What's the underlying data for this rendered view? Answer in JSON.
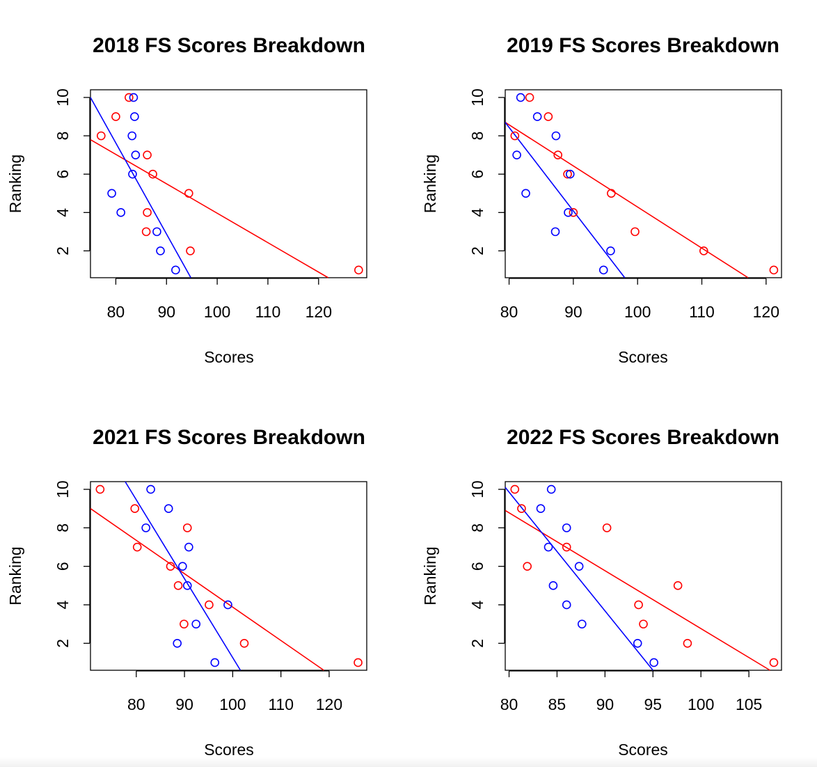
{
  "chart_data": [
    {
      "type": "scatter",
      "title": "2018 FS Scores Breakdown",
      "xlabel": "Scores",
      "ylabel": "Ranking",
      "xlim": [
        75.0,
        129.5
      ],
      "ylim": [
        0.6,
        10.4
      ],
      "xticks": [
        80,
        90,
        100,
        110,
        120
      ],
      "yticks": [
        2,
        4,
        6,
        8,
        10
      ],
      "series": [
        {
          "color": "#ff0000",
          "x": [
            127.9,
            94.7,
            86.0,
            86.2,
            94.4,
            87.3,
            86.2,
            77.1,
            80.0,
            82.6
          ],
          "y": [
            1,
            2,
            3,
            4,
            5,
            6,
            7,
            8,
            9,
            10
          ]
        },
        {
          "color": "#0000ff",
          "x": [
            91.8,
            88.8,
            88.1,
            81.0,
            79.2,
            83.3,
            83.9,
            83.2,
            83.7,
            83.5
          ],
          "y": [
            1,
            2,
            3,
            4,
            5,
            6,
            7,
            8,
            9,
            10
          ]
        }
      ],
      "fit_lines": [
        {
          "color": "#ff0000",
          "x": [
            75.0,
            121.9
          ],
          "y": [
            7.8,
            0.6
          ]
        },
        {
          "color": "#0000ff",
          "x": [
            75.0,
            94.8
          ],
          "y": [
            10.0,
            0.6
          ]
        }
      ]
    },
    {
      "type": "scatter",
      "title": "2019 FS Scores Breakdown",
      "xlabel": "Scores",
      "ylabel": "Ranking",
      "xlim": [
        79.4,
        122.4
      ],
      "ylim": [
        0.6,
        10.4
      ],
      "xticks": [
        80,
        90,
        100,
        110,
        120
      ],
      "yticks": [
        2,
        4,
        6,
        8,
        10
      ],
      "series": [
        {
          "color": "#ff0000",
          "x": [
            121.2,
            110.3,
            99.6,
            90.0,
            95.9,
            89.1,
            87.6,
            80.9,
            86.1,
            83.2
          ],
          "y": [
            1,
            2,
            3,
            4,
            5,
            6,
            7,
            8,
            9,
            10
          ]
        },
        {
          "color": "#0000ff",
          "x": [
            94.7,
            95.8,
            87.2,
            89.2,
            82.6,
            89.5,
            81.2,
            87.3,
            84.4,
            81.8
          ],
          "y": [
            1,
            2,
            3,
            4,
            5,
            6,
            7,
            8,
            9,
            10
          ]
        }
      ],
      "fit_lines": [
        {
          "color": "#ff0000",
          "x": [
            79.4,
            117.2
          ],
          "y": [
            8.7,
            0.6
          ]
        },
        {
          "color": "#0000ff",
          "x": [
            79.4,
            98.0
          ],
          "y": [
            8.7,
            0.6
          ]
        }
      ]
    },
    {
      "type": "scatter",
      "title": "2021 FS Scores Breakdown",
      "xlabel": "Scores",
      "ylabel": "Ranking",
      "xlim": [
        70.5,
        127.8
      ],
      "ylim": [
        0.6,
        10.4
      ],
      "xticks": [
        80,
        90,
        100,
        110,
        120
      ],
      "yticks": [
        2,
        4,
        6,
        8,
        10
      ],
      "series": [
        {
          "color": "#ff0000",
          "x": [
            126.0,
            102.4,
            89.9,
            95.1,
            88.7,
            87.1,
            80.2,
            90.6,
            79.7,
            72.5
          ],
          "y": [
            1,
            2,
            3,
            4,
            5,
            6,
            7,
            8,
            9,
            10
          ]
        },
        {
          "color": "#0000ff",
          "x": [
            96.3,
            88.5,
            92.4,
            99.0,
            90.6,
            89.6,
            90.9,
            82.0,
            86.7,
            83.0
          ],
          "y": [
            1,
            2,
            3,
            4,
            5,
            6,
            7,
            8,
            9,
            10
          ]
        }
      ],
      "fit_lines": [
        {
          "color": "#ff0000",
          "x": [
            70.5,
            118.9
          ],
          "y": [
            9.0,
            0.6
          ]
        },
        {
          "color": "#0000ff",
          "x": [
            77.7,
            101.6
          ],
          "y": [
            10.4,
            0.6
          ]
        }
      ]
    },
    {
      "type": "scatter",
      "title": "2022 FS Scores Breakdown",
      "xlabel": "Scores",
      "ylabel": "Ranking",
      "xlim": [
        79.6,
        108.4
      ],
      "ylim": [
        0.6,
        10.4
      ],
      "xticks": [
        80,
        85,
        90,
        95,
        100,
        105
      ],
      "yticks": [
        2,
        4,
        6,
        8,
        10
      ],
      "series": [
        {
          "color": "#ff0000",
          "x": [
            107.6,
            98.6,
            94.0,
            93.5,
            97.6,
            81.9,
            86.0,
            90.2,
            81.3,
            80.6
          ],
          "y": [
            1,
            2,
            3,
            4,
            5,
            6,
            7,
            8,
            9,
            10
          ]
        },
        {
          "color": "#0000ff",
          "x": [
            95.1,
            93.4,
            87.6,
            86.0,
            84.6,
            87.3,
            84.1,
            86.0,
            83.3,
            84.4
          ],
          "y": [
            1,
            2,
            3,
            4,
            5,
            6,
            7,
            8,
            9,
            10
          ]
        }
      ],
      "fit_lines": [
        {
          "color": "#ff0000",
          "x": [
            79.6,
            107.2
          ],
          "y": [
            8.9,
            0.6
          ]
        },
        {
          "color": "#0000ff",
          "x": [
            79.6,
            95.0
          ],
          "y": [
            10.1,
            0.6
          ]
        }
      ]
    }
  ]
}
